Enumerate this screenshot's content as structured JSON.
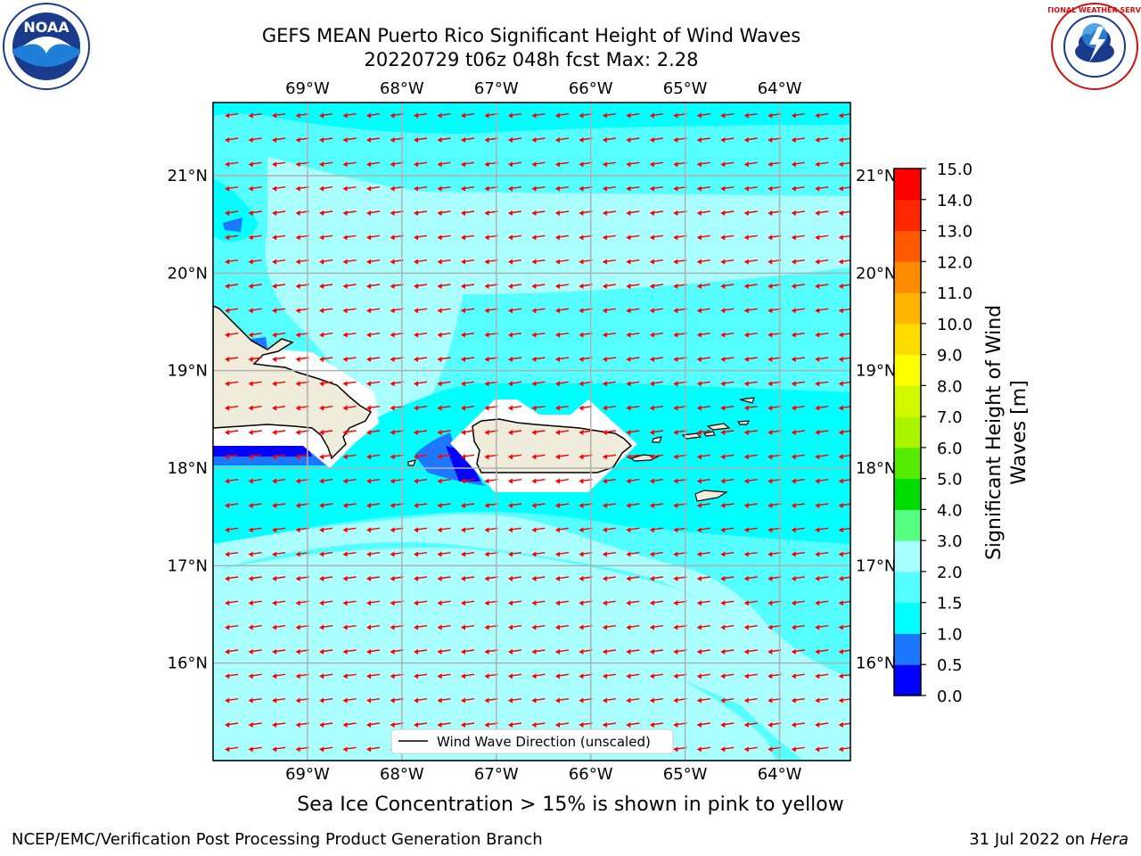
{
  "header": {
    "title_line1": "GEFS MEAN Puerto Rico Significant Height of Wind Waves",
    "title_line2": "20220729 t06z 048h fcst   Max: 2.28"
  },
  "logos": {
    "noaa_text": "NOAA",
    "nws_text": "NATIONAL WEATHER SERVICE"
  },
  "map": {
    "lon_labels": [
      "69°W",
      "68°W",
      "67°W",
      "66°W",
      "65°W",
      "64°W"
    ],
    "lat_labels": [
      "21°N",
      "20°N",
      "19°N",
      "18°N",
      "17°N",
      "16°N"
    ],
    "lon_values": [
      -69,
      -68,
      -67,
      -66,
      -65,
      -64
    ],
    "lat_values": [
      21,
      20,
      19,
      18,
      17,
      16
    ],
    "lon_range": [
      -70,
      -63.25
    ],
    "lat_range": [
      15,
      21.75
    ],
    "grid": true,
    "legend_label": "Wind Wave Direction (unscaled)",
    "arrow_color": "#ff0000",
    "land_color": "#efecdc",
    "prevailing_direction": "east-to-west"
  },
  "colorbar": {
    "label_line1": "Significant Height of Wind",
    "label_line2": "Waves [m]",
    "ticks": [
      "0.0",
      "0.5",
      "1.0",
      "1.5",
      "2.0",
      "3.0",
      "4.0",
      "5.0",
      "6.0",
      "7.0",
      "8.0",
      "9.0",
      "10.0",
      "11.0",
      "12.0",
      "13.0",
      "14.0",
      "15.0"
    ],
    "colors": [
      "#0000ff",
      "#1e78ff",
      "#00ffff",
      "#55ffff",
      "#aaffff",
      "#55ff82",
      "#00dc00",
      "#55ea00",
      "#aaf400",
      "#d2f800",
      "#ffff00",
      "#ffdc00",
      "#ffb400",
      "#ff8c00",
      "#ff5a00",
      "#ff2800",
      "#ff0000"
    ]
  },
  "notes": {
    "sea_ice": "Sea Ice Concentration > 15% is shown in pink to yellow"
  },
  "footer": {
    "left": "NCEP/EMC/Verification Post Processing Product Generation Branch",
    "date": "31 Jul 2022 on ",
    "host": "Hera"
  }
}
